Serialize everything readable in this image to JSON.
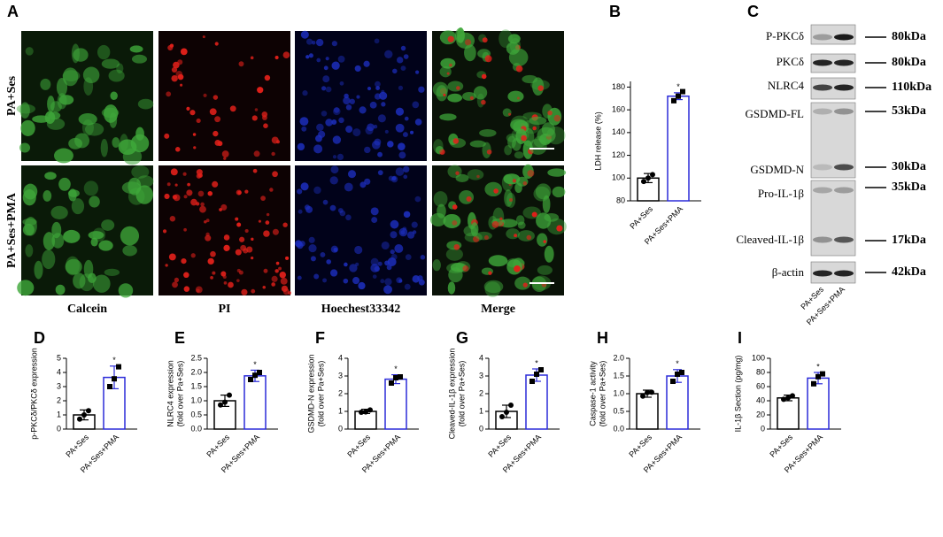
{
  "panel_a": {
    "label": "A",
    "rows": [
      "PA+Ses",
      "PA+Ses+PMA"
    ],
    "columns": [
      "Calcein",
      "PI",
      "Hoechest33342",
      "Merge"
    ]
  },
  "panel_c": {
    "label": "C",
    "bands": [
      {
        "name": "P-PKCδ",
        "size": "80kDa"
      },
      {
        "name": "PKCδ",
        "size": "80kDa"
      },
      {
        "name": "NLRC4",
        "size": "110kDa"
      },
      {
        "name": "GSDMD-FL",
        "size": "53kDa"
      },
      {
        "name": "GSDMD-N",
        "size": "30kDa"
      },
      {
        "name": "Pro-IL-1β",
        "size": "35kDa"
      },
      {
        "name": "Cleaved-IL-1β",
        "size": "17kDa"
      },
      {
        "name": "β-actin",
        "size": "42kDa"
      }
    ],
    "lanes": [
      "PA+Ses",
      "PA+Ses+PMA"
    ]
  },
  "chart_data": [
    {
      "type": "bar",
      "panel": "B",
      "categories": [
        "PA+Ses",
        "PA+Ses+PMA"
      ],
      "values": [
        100,
        172
      ],
      "errors": [
        4,
        3
      ],
      "points": [
        [
          97,
          100,
          103
        ],
        [
          168,
          172,
          176
        ]
      ],
      "colors": [
        "#000000",
        "#2b2bd9"
      ],
      "ylabel": [
        "LDH release (%)"
      ],
      "ylim": [
        80,
        185
      ],
      "yticks": [
        80,
        100,
        120,
        140,
        160,
        180
      ],
      "annotation": "*"
    },
    {
      "type": "bar",
      "panel": "D",
      "categories": [
        "PA+Ses",
        "PA+Ses+PMA"
      ],
      "values": [
        1.0,
        3.65
      ],
      "errors": [
        0.35,
        0.8
      ],
      "points": [
        [
          0.7,
          1.0,
          1.3
        ],
        [
          3.0,
          3.55,
          4.4
        ]
      ],
      "colors": [
        "#000000",
        "#2b2bd9"
      ],
      "ylabel": [
        "p-PKCδ/PKCδ expression"
      ],
      "ylim": [
        0,
        5
      ],
      "yticks": [
        0,
        1,
        2,
        3,
        4,
        5
      ],
      "annotation": "*"
    },
    {
      "type": "bar",
      "panel": "E",
      "categories": [
        "PA+Ses",
        "PA+Ses+PMA"
      ],
      "values": [
        1.0,
        1.88
      ],
      "errors": [
        0.2,
        0.2
      ],
      "points": [
        [
          0.85,
          0.95,
          1.2
        ],
        [
          1.75,
          1.9,
          2.0
        ]
      ],
      "colors": [
        "#000000",
        "#2b2bd9"
      ],
      "ylabel": [
        "NLRC4 expression",
        "(fold over Pa+Ses)"
      ],
      "ylim": [
        0,
        2.5
      ],
      "yticks": [
        {
          "value": 0,
          "label": "0.0"
        },
        0.5,
        {
          "value": 1,
          "label": "1.0"
        },
        1.5,
        {
          "value": 2,
          "label": "2.0"
        },
        2.5
      ],
      "annotation": "*"
    },
    {
      "type": "bar",
      "panel": "F",
      "categories": [
        "PA+Ses",
        "PA+Ses+PMA"
      ],
      "values": [
        1.0,
        2.82
      ],
      "errors": [
        0.12,
        0.25
      ],
      "points": [
        [
          0.95,
          0.97,
          1.08
        ],
        [
          2.6,
          2.9,
          2.95
        ]
      ],
      "colors": [
        "#000000",
        "#2b2bd9"
      ],
      "ylabel": [
        "GSDMD-N expression",
        "(fold over Pa+Ses)"
      ],
      "ylim": [
        0,
        4
      ],
      "yticks": [
        0,
        1,
        2,
        3,
        4
      ],
      "annotation": "*"
    },
    {
      "type": "bar",
      "panel": "G",
      "categories": [
        "PA+Ses",
        "PA+Ses+PMA"
      ],
      "values": [
        1.0,
        3.05
      ],
      "errors": [
        0.35,
        0.35
      ],
      "points": [
        [
          0.7,
          0.95,
          1.35
        ],
        [
          2.7,
          3.1,
          3.35
        ]
      ],
      "colors": [
        "#000000",
        "#2b2bd9"
      ],
      "ylabel": [
        "Cleaved-IL-1β expression",
        "(fold over Pa+Ses)"
      ],
      "ylim": [
        0,
        4
      ],
      "yticks": [
        0,
        1,
        2,
        3,
        4
      ],
      "annotation": "*"
    },
    {
      "type": "bar",
      "panel": "H",
      "categories": [
        "PA+Ses",
        "PA+Ses+PMA"
      ],
      "values": [
        1.0,
        1.5
      ],
      "errors": [
        0.1,
        0.18
      ],
      "points": [
        [
          0.93,
          1.03,
          1.04
        ],
        [
          1.35,
          1.55,
          1.6
        ]
      ],
      "colors": [
        "#000000",
        "#2b2bd9"
      ],
      "ylabel": [
        "Caspase-1 activity",
        "(fold over Pa+Ses)"
      ],
      "ylim": [
        0,
        2
      ],
      "yticks": [
        {
          "value": 0,
          "label": "0.0"
        },
        0.5,
        {
          "value": 1,
          "label": "1.0"
        },
        1.5,
        {
          "value": 2,
          "label": "2.0"
        }
      ],
      "annotation": "*"
    },
    {
      "type": "bar",
      "panel": "I",
      "categories": [
        "PA+Ses",
        "PA+Ses+PMA"
      ],
      "values": [
        44,
        72
      ],
      "errors": [
        4,
        8
      ],
      "points": [
        [
          42,
          44,
          47
        ],
        [
          64,
          74,
          78
        ]
      ],
      "colors": [
        "#000000",
        "#2b2bd9"
      ],
      "ylabel": [
        "IL-1β Section (pg/mg)"
      ],
      "ylim": [
        0,
        100
      ],
      "yticks": [
        0,
        20,
        40,
        60,
        80,
        100
      ],
      "annotation": "*"
    }
  ]
}
